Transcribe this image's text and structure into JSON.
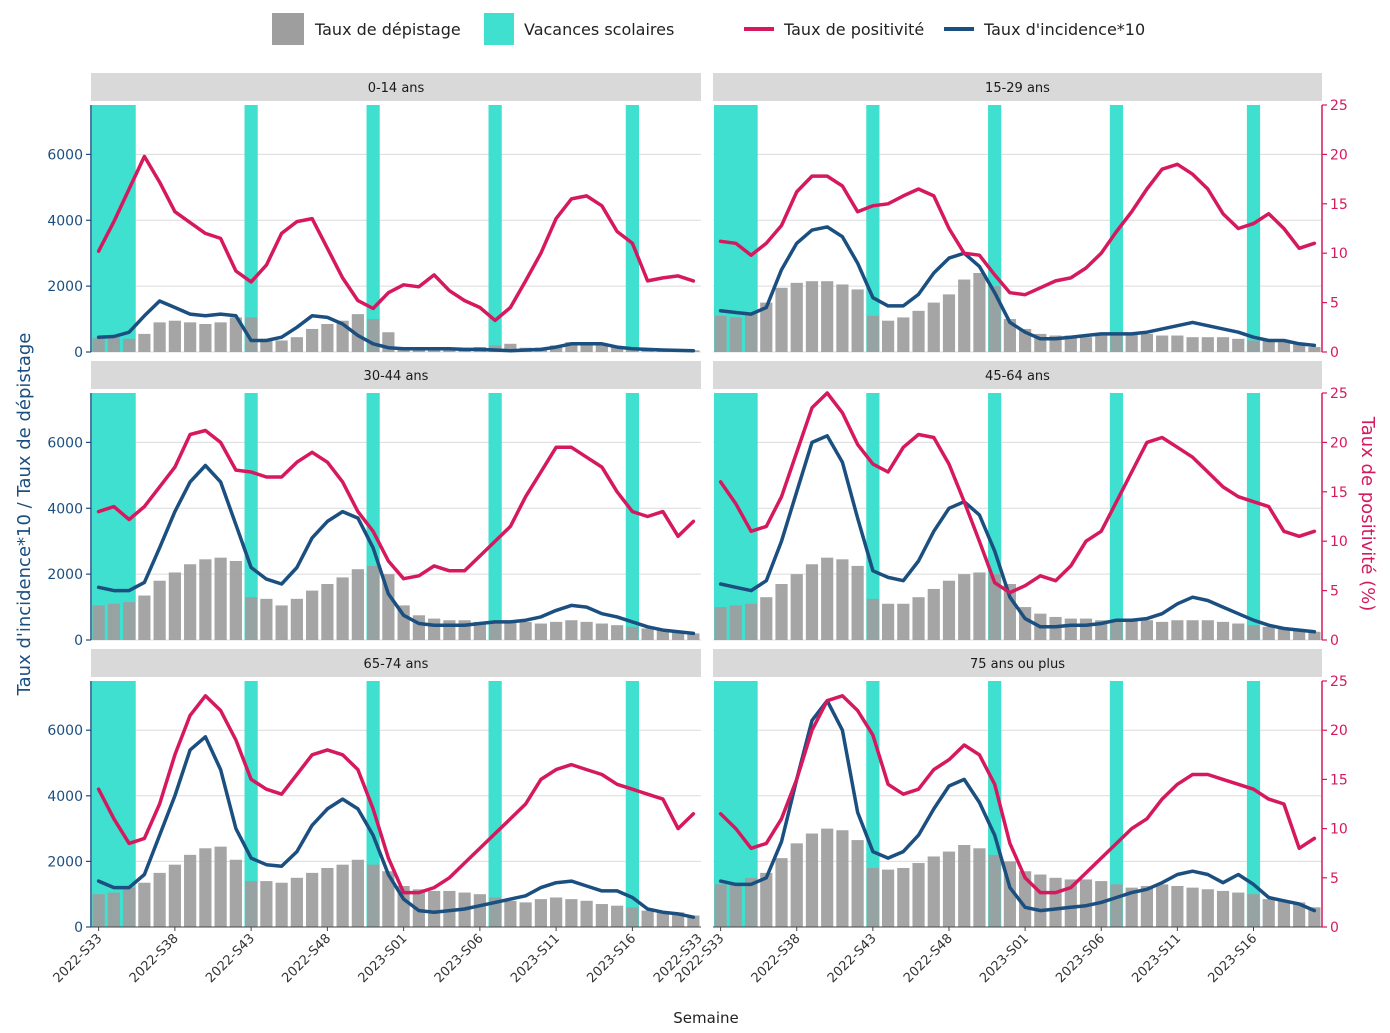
{
  "legend": {
    "items": [
      {
        "label": "Taux de dépistage",
        "kind": "bar",
        "color": "#9e9e9e"
      },
      {
        "label": "Vacances scolaires",
        "kind": "band",
        "color": "#40e0d0"
      },
      {
        "label": "Taux de positivité",
        "kind": "line",
        "color": "#d6195e"
      },
      {
        "label": "Taux d'incidence*10",
        "kind": "line",
        "color": "#1b4f80"
      }
    ]
  },
  "axes": {
    "y_left_label": "Taux d'incidence*10 / Taux de dépistage",
    "y_right_label": "Taux de positivité (%)",
    "x_label": "Semaine",
    "y_left_ticks": [
      "0",
      "2000",
      "4000",
      "6000"
    ],
    "y_right_ticks": [
      "0",
      "5",
      "10",
      "15",
      "20",
      "25"
    ],
    "x_tick_labels": [
      "2022-S33",
      "2022-S38",
      "2022-S43",
      "2022-S48",
      "2023-S01",
      "2023-S06",
      "2023-S11",
      "2023-S16",
      "2022-S33"
    ]
  },
  "chart_data": {
    "type": "bar",
    "weeks": [
      "2022-S33",
      "2022-S34",
      "2022-S35",
      "2022-S36",
      "2022-S37",
      "2022-S38",
      "2022-S39",
      "2022-S40",
      "2022-S41",
      "2022-S42",
      "2022-S43",
      "2022-S44",
      "2022-S45",
      "2022-S46",
      "2022-S47",
      "2022-S48",
      "2022-S49",
      "2022-S50",
      "2022-S51",
      "2022-S52",
      "2023-S01",
      "2023-S02",
      "2023-S03",
      "2023-S04",
      "2023-S05",
      "2023-S06",
      "2023-S07",
      "2023-S08",
      "2023-S09",
      "2023-S10",
      "2023-S11",
      "2023-S12",
      "2023-S13",
      "2023-S14",
      "2023-S15",
      "2023-S16",
      "2023-S17",
      "2023-S18",
      "2023-S19",
      "2023-S20"
    ],
    "y_left_lim": [
      0,
      7500
    ],
    "y_right_lim": [
      0,
      25
    ],
    "school_holidays": [
      [
        "2022-S33",
        "2022-S35"
      ],
      [
        "2022-S43",
        "2022-S43"
      ],
      [
        "2022-S51",
        "2022-S51"
      ],
      [
        "2023-S07",
        "2023-S07"
      ],
      [
        "2023-S16",
        "2023-S16"
      ]
    ],
    "panels": [
      {
        "title": "0-14 ans",
        "depistage": [
          420,
          450,
          400,
          550,
          900,
          950,
          900,
          850,
          900,
          1050,
          1050,
          400,
          350,
          450,
          700,
          850,
          950,
          1150,
          1000,
          600,
          150,
          120,
          120,
          120,
          120,
          150,
          200,
          250,
          130,
          130,
          200,
          300,
          300,
          250,
          150,
          120,
          100,
          80,
          60,
          50
        ],
        "incidence10": [
          450,
          470,
          600,
          1100,
          1550,
          1350,
          1150,
          1100,
          1150,
          1100,
          350,
          350,
          450,
          750,
          1100,
          1050,
          850,
          500,
          250,
          130,
          100,
          100,
          100,
          100,
          80,
          80,
          60,
          40,
          60,
          80,
          150,
          250,
          250,
          250,
          150,
          100,
          80,
          60,
          50,
          40
        ],
        "positivite": [
          10.2,
          13.2,
          16.5,
          19.8,
          17.2,
          14.2,
          13.1,
          12,
          11.5,
          8.2,
          7.1,
          8.8,
          12,
          13.2,
          13.5,
          10.5,
          7.5,
          5.2,
          4.4,
          6,
          6.8,
          6.6,
          7.8,
          6.2,
          5.2,
          4.5,
          3.2,
          4.5,
          7.2,
          10,
          13.5,
          15.5,
          15.8,
          14.8,
          12.2,
          11,
          7.2,
          7.5,
          7.7,
          7.2
        ]
      },
      {
        "title": "15-29 ans",
        "depistage": [
          1100,
          1050,
          1150,
          1500,
          1950,
          2100,
          2150,
          2150,
          2050,
          1900,
          1100,
          950,
          1050,
          1250,
          1500,
          1750,
          2200,
          2400,
          2000,
          1000,
          700,
          550,
          500,
          500,
          450,
          500,
          550,
          550,
          550,
          500,
          500,
          450,
          450,
          450,
          400,
          350,
          350,
          300,
          250,
          150
        ],
        "incidence10": [
          1250,
          1200,
          1150,
          1350,
          2500,
          3300,
          3700,
          3800,
          3500,
          2700,
          1650,
          1400,
          1400,
          1750,
          2400,
          2850,
          3000,
          2600,
          1800,
          900,
          600,
          400,
          400,
          450,
          500,
          550,
          550,
          550,
          600,
          700,
          800,
          900,
          800,
          700,
          600,
          450,
          350,
          350,
          250,
          200
        ],
        "positivite": [
          11.2,
          11,
          9.8,
          11,
          12.8,
          16.2,
          17.8,
          17.8,
          16.8,
          14.2,
          14.8,
          15,
          15.8,
          16.5,
          15.8,
          12.5,
          10,
          9.8,
          7.8,
          6,
          5.8,
          6.5,
          7.2,
          7.5,
          8.5,
          10,
          12.2,
          14.2,
          16.5,
          18.5,
          19,
          18,
          16.5,
          14,
          12.5,
          13,
          14,
          12.5,
          10.5,
          11
        ]
      },
      {
        "title": "30-44 ans",
        "depistage": [
          1050,
          1100,
          1150,
          1350,
          1800,
          2050,
          2300,
          2450,
          2500,
          2400,
          1300,
          1250,
          1050,
          1250,
          1500,
          1700,
          1900,
          2150,
          2250,
          2000,
          1050,
          750,
          650,
          600,
          600,
          550,
          550,
          550,
          550,
          500,
          550,
          600,
          550,
          500,
          450,
          400,
          350,
          300,
          250,
          200
        ],
        "incidence10": [
          1600,
          1500,
          1500,
          1750,
          2800,
          3900,
          4800,
          5300,
          4800,
          3500,
          2200,
          1850,
          1700,
          2200,
          3100,
          3600,
          3900,
          3700,
          2800,
          1400,
          750,
          500,
          450,
          450,
          450,
          500,
          550,
          550,
          600,
          700,
          900,
          1050,
          1000,
          800,
          700,
          550,
          400,
          300,
          250,
          200
        ],
        "positivite": [
          13,
          13.5,
          12.2,
          13.5,
          15.5,
          17.5,
          20.8,
          21.2,
          20,
          17.2,
          17,
          16.5,
          16.5,
          18,
          19,
          18,
          16,
          13,
          11,
          8,
          6.2,
          6.5,
          7.5,
          7,
          7,
          8.5,
          10,
          11.5,
          14.5,
          17,
          19.5,
          19.5,
          18.5,
          17.5,
          15,
          13,
          12.5,
          13,
          10.5,
          12
        ]
      },
      {
        "title": "45-64 ans",
        "depistage": [
          1000,
          1050,
          1100,
          1300,
          1700,
          2000,
          2300,
          2500,
          2450,
          2250,
          1250,
          1100,
          1100,
          1300,
          1550,
          1800,
          2000,
          2050,
          2000,
          1700,
          1000,
          800,
          700,
          650,
          650,
          600,
          600,
          600,
          600,
          550,
          600,
          600,
          600,
          550,
          500,
          450,
          400,
          350,
          300,
          250
        ],
        "incidence10": [
          1700,
          1600,
          1500,
          1800,
          3000,
          4500,
          6000,
          6200,
          5400,
          3700,
          2100,
          1900,
          1800,
          2400,
          3300,
          4000,
          4200,
          3800,
          2700,
          1300,
          650,
          400,
          400,
          450,
          450,
          500,
          600,
          600,
          650,
          800,
          1100,
          1300,
          1200,
          1000,
          800,
          600,
          450,
          350,
          300,
          250
        ],
        "positivite": [
          16,
          13.8,
          11,
          11.5,
          14.5,
          19,
          23.5,
          25,
          23,
          19.8,
          17.8,
          17,
          19.5,
          20.8,
          20.5,
          17.8,
          14,
          10,
          5.8,
          4.8,
          5.5,
          6.5,
          6,
          7.5,
          10,
          11,
          14,
          17,
          20,
          20.5,
          19.5,
          18.5,
          17,
          15.5,
          14.5,
          14,
          13.5,
          11,
          10.5,
          11
        ]
      },
      {
        "title": "65-74 ans",
        "depistage": [
          1000,
          1050,
          1200,
          1350,
          1650,
          1900,
          2200,
          2400,
          2450,
          2050,
          1400,
          1400,
          1350,
          1500,
          1650,
          1800,
          1900,
          2050,
          1900,
          1700,
          1250,
          1150,
          1100,
          1100,
          1050,
          1000,
          900,
          800,
          750,
          850,
          900,
          850,
          800,
          700,
          650,
          600,
          500,
          450,
          450,
          350
        ],
        "incidence10": [
          1400,
          1200,
          1200,
          1600,
          2800,
          4000,
          5400,
          5800,
          4800,
          3000,
          2100,
          1900,
          1850,
          2300,
          3100,
          3600,
          3900,
          3600,
          2800,
          1600,
          850,
          500,
          450,
          500,
          550,
          650,
          750,
          850,
          950,
          1200,
          1350,
          1400,
          1250,
          1100,
          1100,
          900,
          550,
          450,
          400,
          300
        ],
        "positivite": [
          14,
          11,
          8.5,
          9,
          12.5,
          17.5,
          21.5,
          23.5,
          22,
          19,
          15,
          14,
          13.5,
          15.5,
          17.5,
          18,
          17.5,
          16,
          12,
          7,
          3.5,
          3.5,
          4,
          5,
          6.5,
          8,
          9.5,
          11,
          12.5,
          15,
          16,
          16.5,
          16,
          15.5,
          14.5,
          14,
          13.5,
          13,
          10,
          11.5
        ]
      },
      {
        "title": "75 ans ou plus",
        "depistage": [
          1300,
          1350,
          1500,
          1650,
          2100,
          2550,
          2850,
          3000,
          2950,
          2650,
          1800,
          1750,
          1800,
          1950,
          2150,
          2300,
          2500,
          2400,
          2200,
          2000,
          1700,
          1600,
          1500,
          1450,
          1450,
          1400,
          1300,
          1200,
          1250,
          1300,
          1250,
          1200,
          1150,
          1100,
          1050,
          1000,
          850,
          800,
          750,
          600
        ],
        "incidence10": [
          1400,
          1300,
          1300,
          1500,
          2600,
          4500,
          6300,
          6900,
          6000,
          3500,
          2300,
          2100,
          2300,
          2800,
          3600,
          4300,
          4500,
          3800,
          2800,
          1200,
          600,
          500,
          550,
          600,
          650,
          750,
          900,
          1050,
          1150,
          1350,
          1600,
          1700,
          1600,
          1350,
          1600,
          1300,
          900,
          800,
          700,
          500
        ],
        "positivite": [
          11.5,
          10,
          8,
          8.5,
          11,
          15,
          20,
          23,
          23.5,
          22,
          19.5,
          14.5,
          13.5,
          14,
          16,
          17,
          18.5,
          17.5,
          14.5,
          8.5,
          5,
          3.5,
          3.5,
          4,
          5.5,
          7,
          8.5,
          10,
          11,
          13,
          14.5,
          15.5,
          15.5,
          15,
          14.5,
          14,
          13,
          12.5,
          8,
          9
        ]
      }
    ]
  }
}
